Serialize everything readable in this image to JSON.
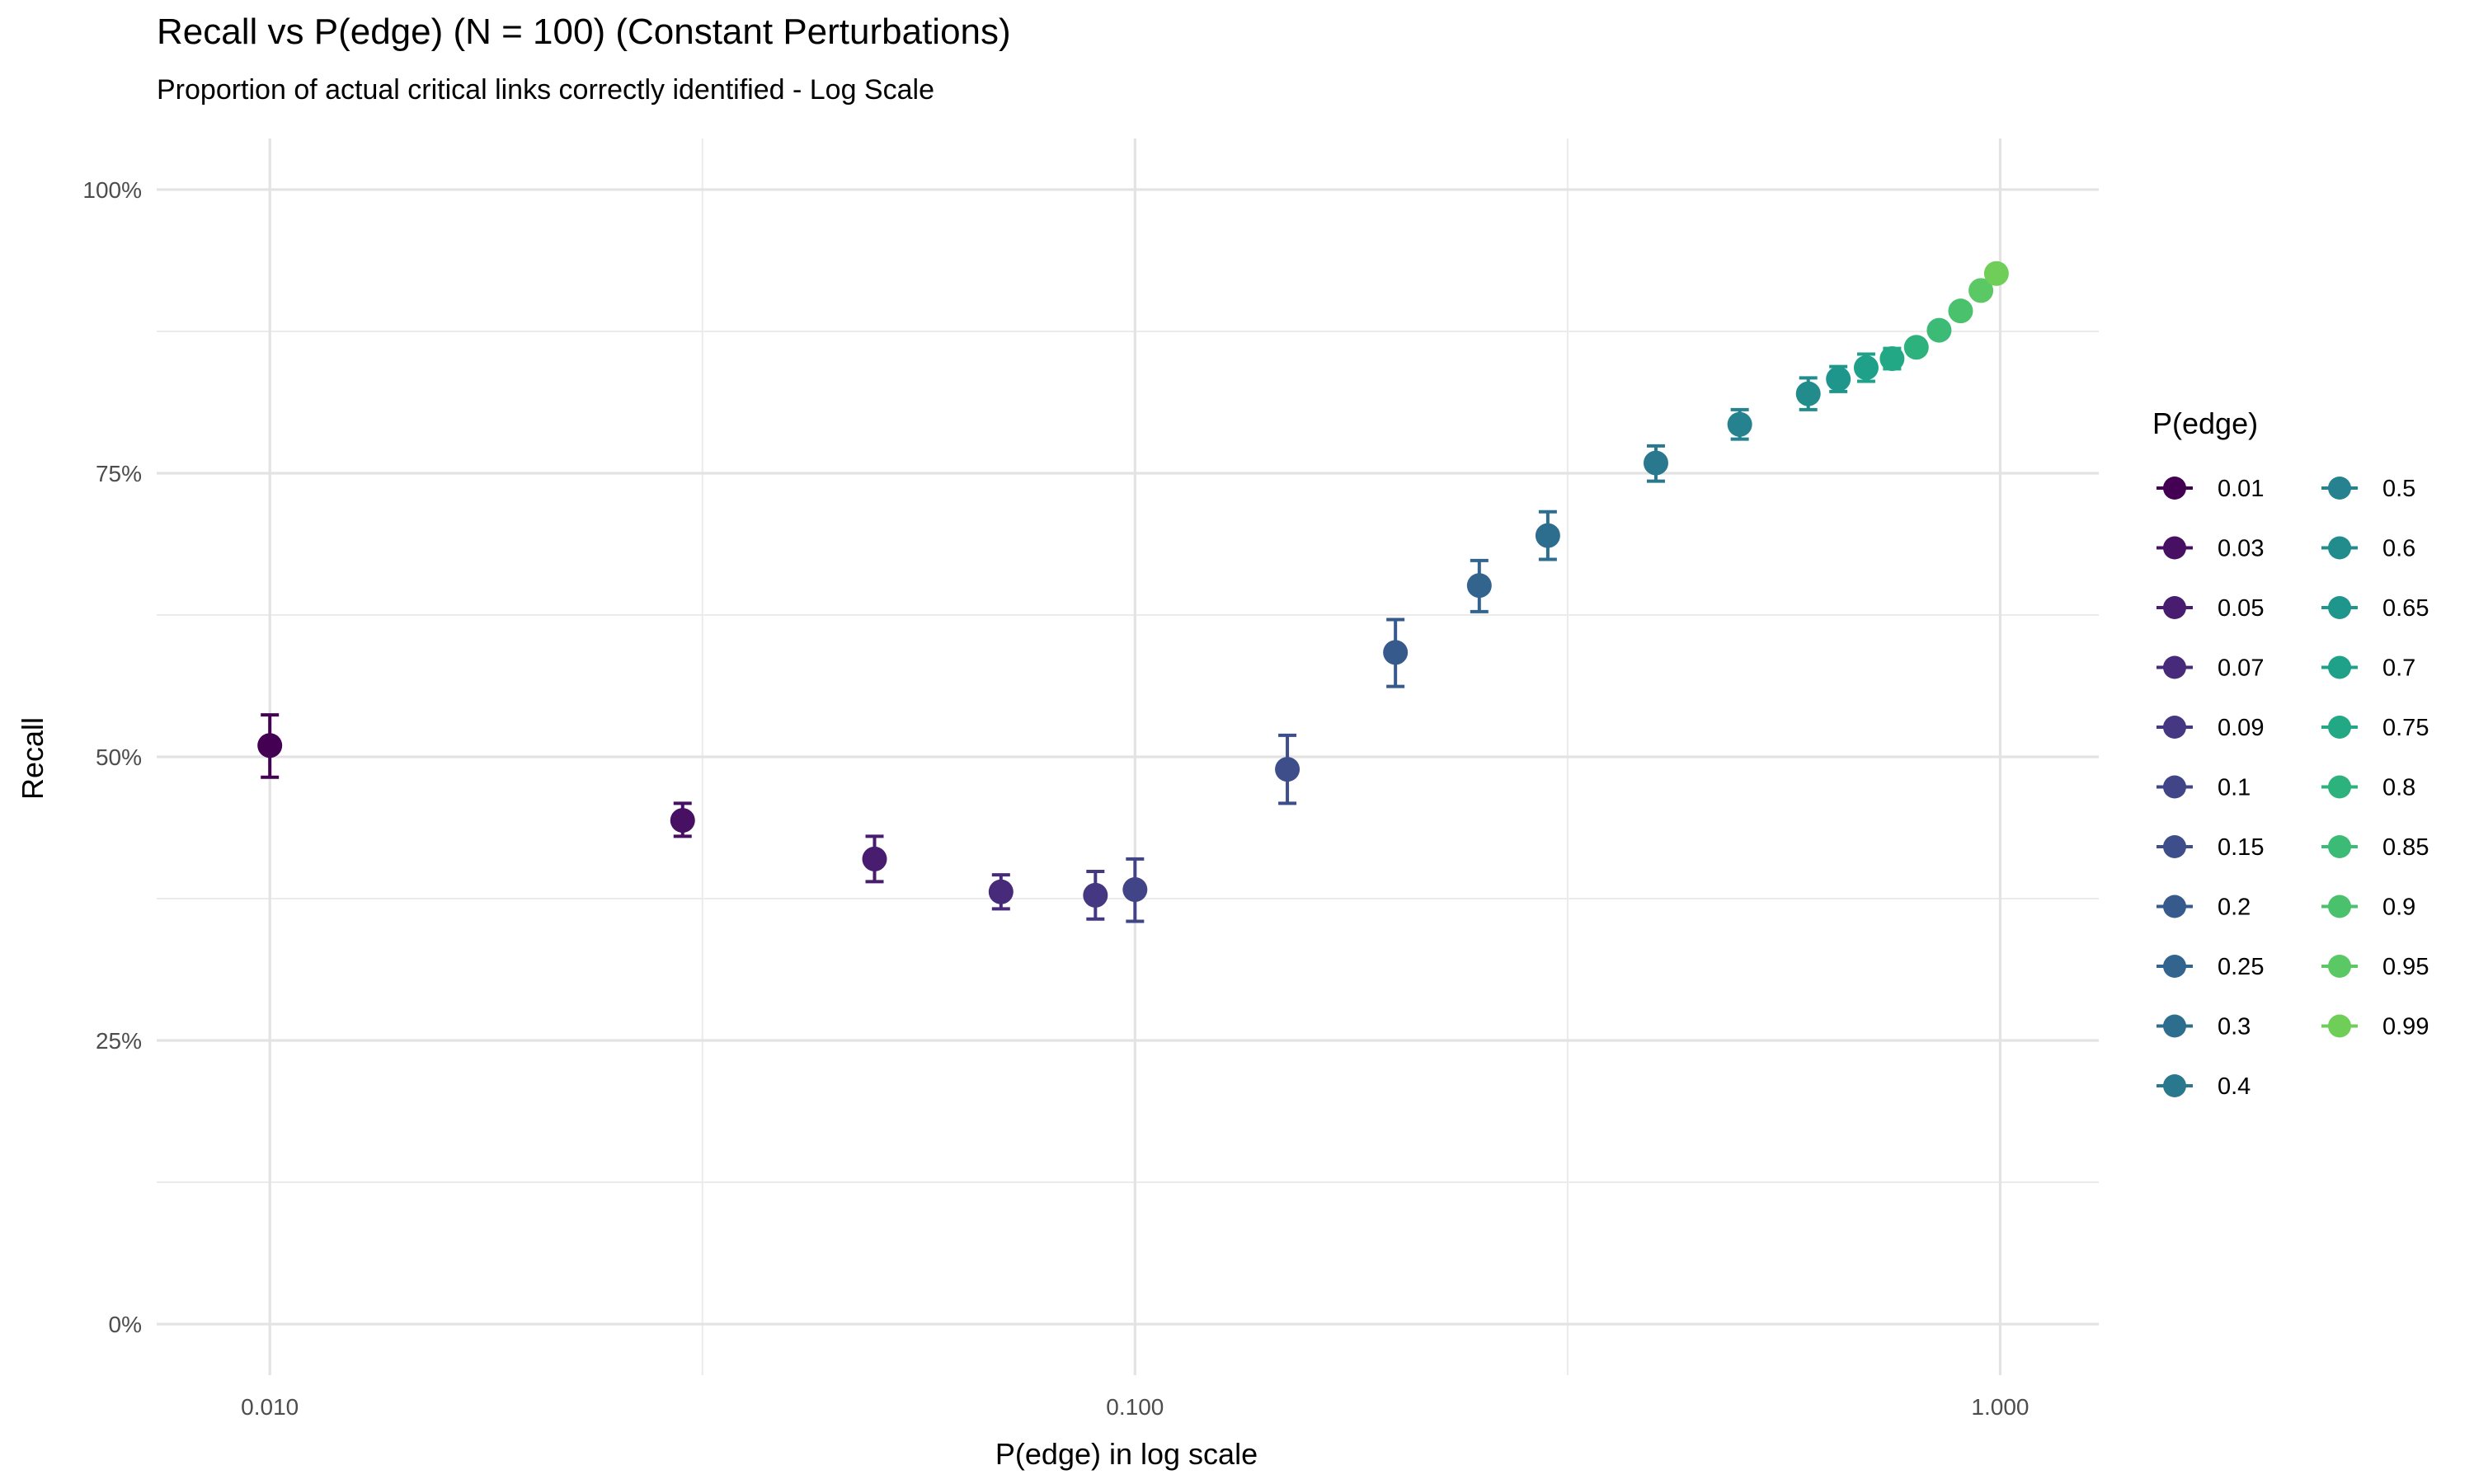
{
  "chart_data": {
    "type": "scatter",
    "title": "Recall vs P(edge) (N = 100) (Constant Perturbations)",
    "subtitle": "Proportion of actual critical links correctly identified - Log Scale",
    "xlabel": "P(edge) in log scale",
    "ylabel": "Recall",
    "x_scale": "log10",
    "xlim": [
      0.0074,
      1.3
    ],
    "ylim": [
      -0.045,
      1.045
    ],
    "x_ticks": [
      0.01,
      0.1,
      1.0
    ],
    "x_tick_labels": [
      "0.010",
      "0.100",
      "1.000"
    ],
    "y_ticks": [
      0,
      0.25,
      0.5,
      0.75,
      1.0
    ],
    "y_tick_labels": [
      "0%",
      "25%",
      "50%",
      "75%",
      "100%"
    ],
    "grid": true,
    "legend": {
      "title": "P(edge)",
      "position": "right",
      "columns": 2
    },
    "points": [
      {
        "label": "0.01",
        "x": 0.01,
        "y": 0.51,
        "ymin": 0.482,
        "ymax": 0.537,
        "color": "#440154"
      },
      {
        "label": "0.03",
        "x": 0.03,
        "y": 0.444,
        "ymin": 0.43,
        "ymax": 0.459,
        "color": "#471063"
      },
      {
        "label": "0.05",
        "x": 0.05,
        "y": 0.41,
        "ymin": 0.39,
        "ymax": 0.43,
        "color": "#481d6f"
      },
      {
        "label": "0.07",
        "x": 0.07,
        "y": 0.381,
        "ymin": 0.366,
        "ymax": 0.396,
        "color": "#472a7a"
      },
      {
        "label": "0.09",
        "x": 0.09,
        "y": 0.378,
        "ymin": 0.357,
        "ymax": 0.399,
        "color": "#453781"
      },
      {
        "label": "0.1",
        "x": 0.1,
        "y": 0.383,
        "ymin": 0.355,
        "ymax": 0.41,
        "color": "#414487"
      },
      {
        "label": "0.15",
        "x": 0.15,
        "y": 0.489,
        "ymin": 0.459,
        "ymax": 0.519,
        "color": "#3d4e8a"
      },
      {
        "label": "0.2",
        "x": 0.2,
        "y": 0.592,
        "ymin": 0.562,
        "ymax": 0.621,
        "color": "#375a8c"
      },
      {
        "label": "0.25",
        "x": 0.25,
        "y": 0.651,
        "ymin": 0.628,
        "ymax": 0.673,
        "color": "#32648e"
      },
      {
        "label": "0.3",
        "x": 0.3,
        "y": 0.695,
        "ymin": 0.674,
        "ymax": 0.716,
        "color": "#2d6e8e"
      },
      {
        "label": "0.4",
        "x": 0.4,
        "y": 0.759,
        "ymin": 0.743,
        "ymax": 0.774,
        "color": "#2a788e"
      },
      {
        "label": "0.5",
        "x": 0.5,
        "y": 0.793,
        "ymin": 0.78,
        "ymax": 0.806,
        "color": "#25828e"
      },
      {
        "label": "0.6",
        "x": 0.6,
        "y": 0.82,
        "ymin": 0.806,
        "ymax": 0.834,
        "color": "#228c8d"
      },
      {
        "label": "0.65",
        "x": 0.65,
        "y": 0.833,
        "ymin": 0.822,
        "ymax": 0.844,
        "color": "#1f968b"
      },
      {
        "label": "0.7",
        "x": 0.7,
        "y": 0.843,
        "ymin": 0.831,
        "ymax": 0.855,
        "color": "#1fa088"
      },
      {
        "label": "0.75",
        "x": 0.75,
        "y": 0.851,
        "ymin": 0.842,
        "ymax": 0.86,
        "color": "#22a884"
      },
      {
        "label": "0.8",
        "x": 0.8,
        "y": 0.861,
        "ymin": 0.855,
        "ymax": 0.867,
        "color": "#2db27d"
      },
      {
        "label": "0.85",
        "x": 0.85,
        "y": 0.876,
        "ymin": 0.871,
        "ymax": 0.881,
        "color": "#3bbb75"
      },
      {
        "label": "0.9",
        "x": 0.9,
        "y": 0.893,
        "ymin": 0.889,
        "ymax": 0.897,
        "color": "#4ac16d"
      },
      {
        "label": "0.95",
        "x": 0.95,
        "y": 0.911,
        "ymin": 0.908,
        "ymax": 0.914,
        "color": "#5ac864"
      },
      {
        "label": "0.99",
        "x": 0.99,
        "y": 0.926,
        "ymin": 0.924,
        "ymax": 0.928,
        "color": "#6ece58"
      }
    ]
  }
}
